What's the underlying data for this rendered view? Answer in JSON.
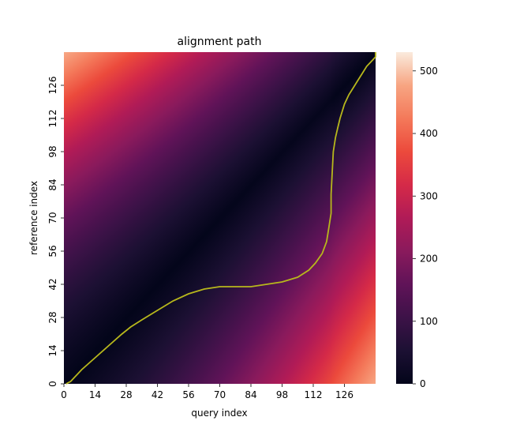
{
  "chart_data": {
    "type": "heatmap",
    "title": "alignment path",
    "xlabel": "query index",
    "ylabel": "reference index",
    "x_ticks": [
      0,
      14,
      28,
      42,
      56,
      70,
      84,
      98,
      112,
      126
    ],
    "y_ticks": [
      0,
      14,
      28,
      42,
      56,
      70,
      84,
      98,
      112,
      126
    ],
    "x_range": [
      0,
      140
    ],
    "y_range": [
      0,
      140
    ],
    "y_origin": "bottom",
    "colormap": "rocket",
    "colorbar": {
      "min": 0,
      "max": 530,
      "ticks": [
        0,
        100,
        200,
        300,
        400,
        500
      ]
    },
    "cost_matrix_description_values": {
      "corner_top_left": 520,
      "corner_bottom_right": 520,
      "diagonal_band_min": 0
    },
    "alignment_path": {
      "color": "#b7b71c",
      "x": [
        1,
        3,
        8,
        14,
        20,
        26,
        30,
        35,
        42,
        49,
        56,
        63,
        70,
        77,
        84,
        91,
        98,
        105,
        110,
        113,
        116,
        118,
        119,
        120,
        120,
        121,
        122,
        123,
        124,
        125,
        126,
        127,
        128,
        130,
        132,
        134,
        136,
        138,
        140,
        140
      ],
      "y": [
        0,
        1,
        6,
        11,
        16,
        21,
        24,
        27,
        31,
        35,
        38,
        40,
        41,
        41,
        41,
        42,
        43,
        45,
        48,
        51,
        55,
        60,
        66,
        72,
        80,
        98,
        104,
        108,
        112,
        115,
        118,
        120,
        122,
        125,
        128,
        131,
        134,
        136,
        138,
        140
      ]
    }
  }
}
